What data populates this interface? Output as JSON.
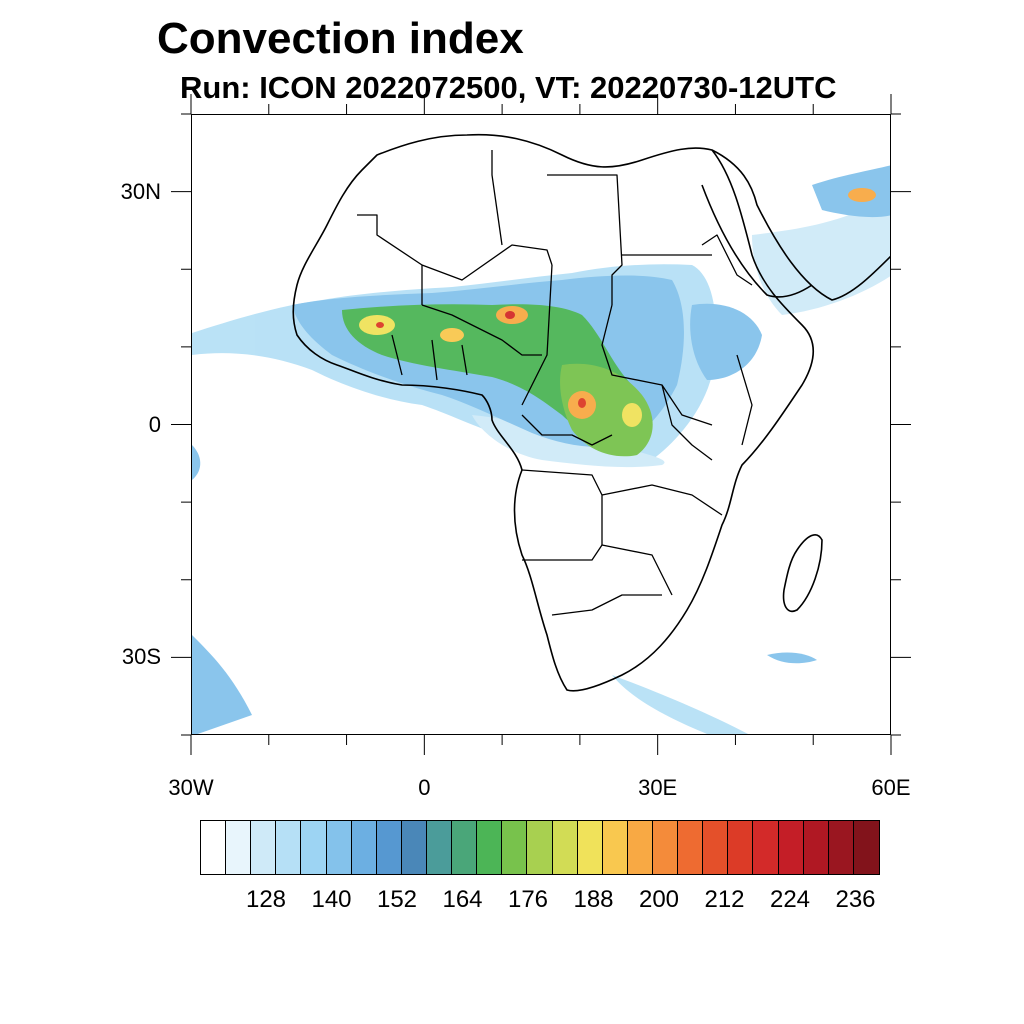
{
  "title": "Convection index",
  "subtitle": "Run: ICON 2022072500,  VT: 20220730-12UTC",
  "map": {
    "extent": {
      "lon_min": -30,
      "lon_max": 60,
      "lat_min": -40,
      "lat_max": 40
    },
    "lat_ticks": [
      {
        "value": 30,
        "label": "30N"
      },
      {
        "value": 0,
        "label": "0"
      },
      {
        "value": -30,
        "label": "30S"
      }
    ],
    "lon_ticks": [
      {
        "value": -30,
        "label": "30W"
      },
      {
        "value": 0,
        "label": "0"
      },
      {
        "value": 30,
        "label": "30E"
      },
      {
        "value": 60,
        "label": "60E"
      }
    ],
    "minor_tick_step_deg": 10
  },
  "colorbar": {
    "colors": [
      "#ffffff",
      "#e8f5fc",
      "#cfeaf8",
      "#b6e0f6",
      "#9dd4f3",
      "#84c2eb",
      "#6cafe2",
      "#5698d1",
      "#4a87b8",
      "#4b9c9a",
      "#4aa679",
      "#4cb556",
      "#78c24c",
      "#a8d050",
      "#d2dc55",
      "#f0e25a",
      "#f9c84f",
      "#f8a944",
      "#f48b3a",
      "#ee6b31",
      "#e4502a",
      "#dc3b27",
      "#d32a29",
      "#c41e27",
      "#b01823",
      "#9a1620",
      "#82131b"
    ],
    "labels": [
      "128",
      "140",
      "152",
      "164",
      "176",
      "188",
      "200",
      "212",
      "224",
      "236"
    ]
  }
}
